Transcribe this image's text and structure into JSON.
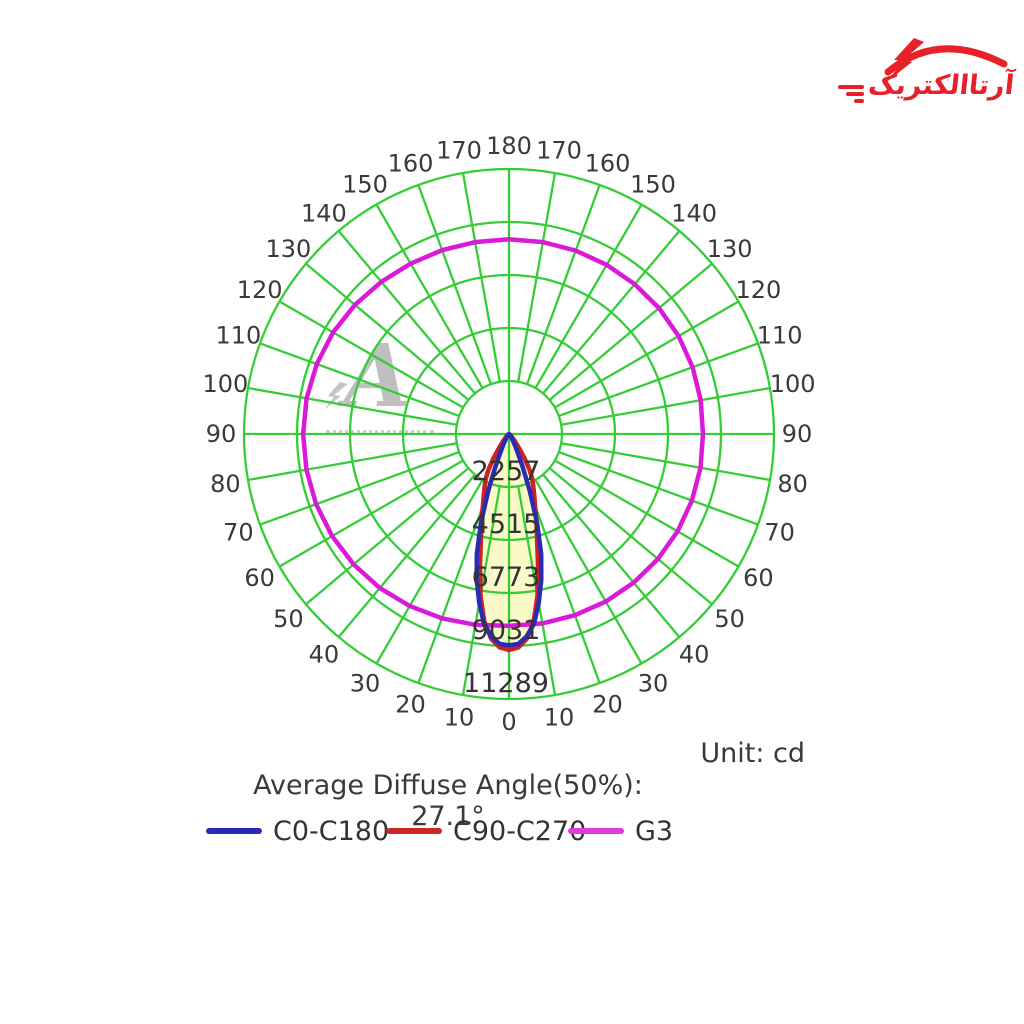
{
  "logo": {
    "brand_text": "آرتاالکتریک",
    "color": "#e62129"
  },
  "watermark": {
    "letter": "A",
    "color": "#b5b5b5"
  },
  "chart_data": {
    "type": "polar_photometric",
    "unit_label": "Unit: cd",
    "average_text": "Average Diffuse Angle(50%): 27.1°",
    "grid_color": "#35cd35",
    "text_color": "#3a3a3a",
    "beam_fill_color": "#fafac8",
    "ring_values": [
      2257,
      4515,
      6773,
      9031,
      11289
    ],
    "max_value": 11289,
    "angle_step_deg": 10,
    "angle_labels": [
      0,
      10,
      20,
      30,
      40,
      50,
      60,
      70,
      80,
      90,
      100,
      110,
      120,
      130,
      140,
      150,
      160,
      170,
      180
    ],
    "series": [
      {
        "name": "C0-C180",
        "color": "#2b2bb5",
        "symmetric": true,
        "points": [
          [
            0,
            9000
          ],
          [
            2.5,
            8950
          ],
          [
            5,
            8650
          ],
          [
            7.5,
            8150
          ],
          [
            10,
            7300
          ],
          [
            12.5,
            6350
          ],
          [
            15,
            5300
          ],
          [
            17.5,
            4000
          ],
          [
            20,
            2600
          ],
          [
            22.5,
            1550
          ],
          [
            25,
            900
          ],
          [
            27.5,
            550
          ],
          [
            30,
            350
          ],
          [
            35,
            170
          ],
          [
            40,
            80
          ],
          [
            50,
            25
          ],
          [
            60,
            10
          ],
          [
            90,
            0
          ]
        ]
      },
      {
        "name": "C90-C270",
        "color": "#c92323",
        "symmetric": true,
        "points": [
          [
            0,
            9200
          ],
          [
            2.5,
            9100
          ],
          [
            5,
            8750
          ],
          [
            7.5,
            8050
          ],
          [
            10,
            7000
          ],
          [
            12.5,
            5700
          ],
          [
            15,
            4600
          ],
          [
            17.5,
            3900
          ],
          [
            20,
            3250
          ],
          [
            22.5,
            2800
          ],
          [
            25,
            2450
          ],
          [
            27.5,
            2150
          ],
          [
            30,
            1750
          ],
          [
            32.5,
            1250
          ],
          [
            35,
            800
          ],
          [
            40,
            400
          ],
          [
            45,
            180
          ],
          [
            50,
            80
          ],
          [
            60,
            20
          ],
          [
            90,
            0
          ]
        ]
      },
      {
        "name": "G3",
        "color": "#d91ad9",
        "symmetric": false,
        "angles": [
          0,
          10,
          20,
          30,
          40,
          50,
          60,
          70,
          80,
          90,
          100,
          110,
          120,
          130,
          140,
          150,
          160,
          170,
          180
        ],
        "values_right": [
          8170,
          8190,
          8210,
          8240,
          8260,
          8280,
          8290,
          8290,
          8280,
          8260,
          8290,
          8320,
          8340,
          8340,
          8330,
          8320,
          8310,
          8300,
          8290
        ],
        "values_left": [
          8170,
          8250,
          8350,
          8460,
          8560,
          8640,
          8700,
          8740,
          8760,
          8770,
          8750,
          8710,
          8650,
          8560,
          8460,
          8380,
          8330,
          8300,
          8290
        ]
      }
    ]
  },
  "legend": {
    "items": [
      {
        "label": "C0-C180",
        "color": "#2a2ab8"
      },
      {
        "label": "C90-C270",
        "color": "#cc2626"
      },
      {
        "label": "G3",
        "color": "#e03ae0"
      }
    ]
  }
}
